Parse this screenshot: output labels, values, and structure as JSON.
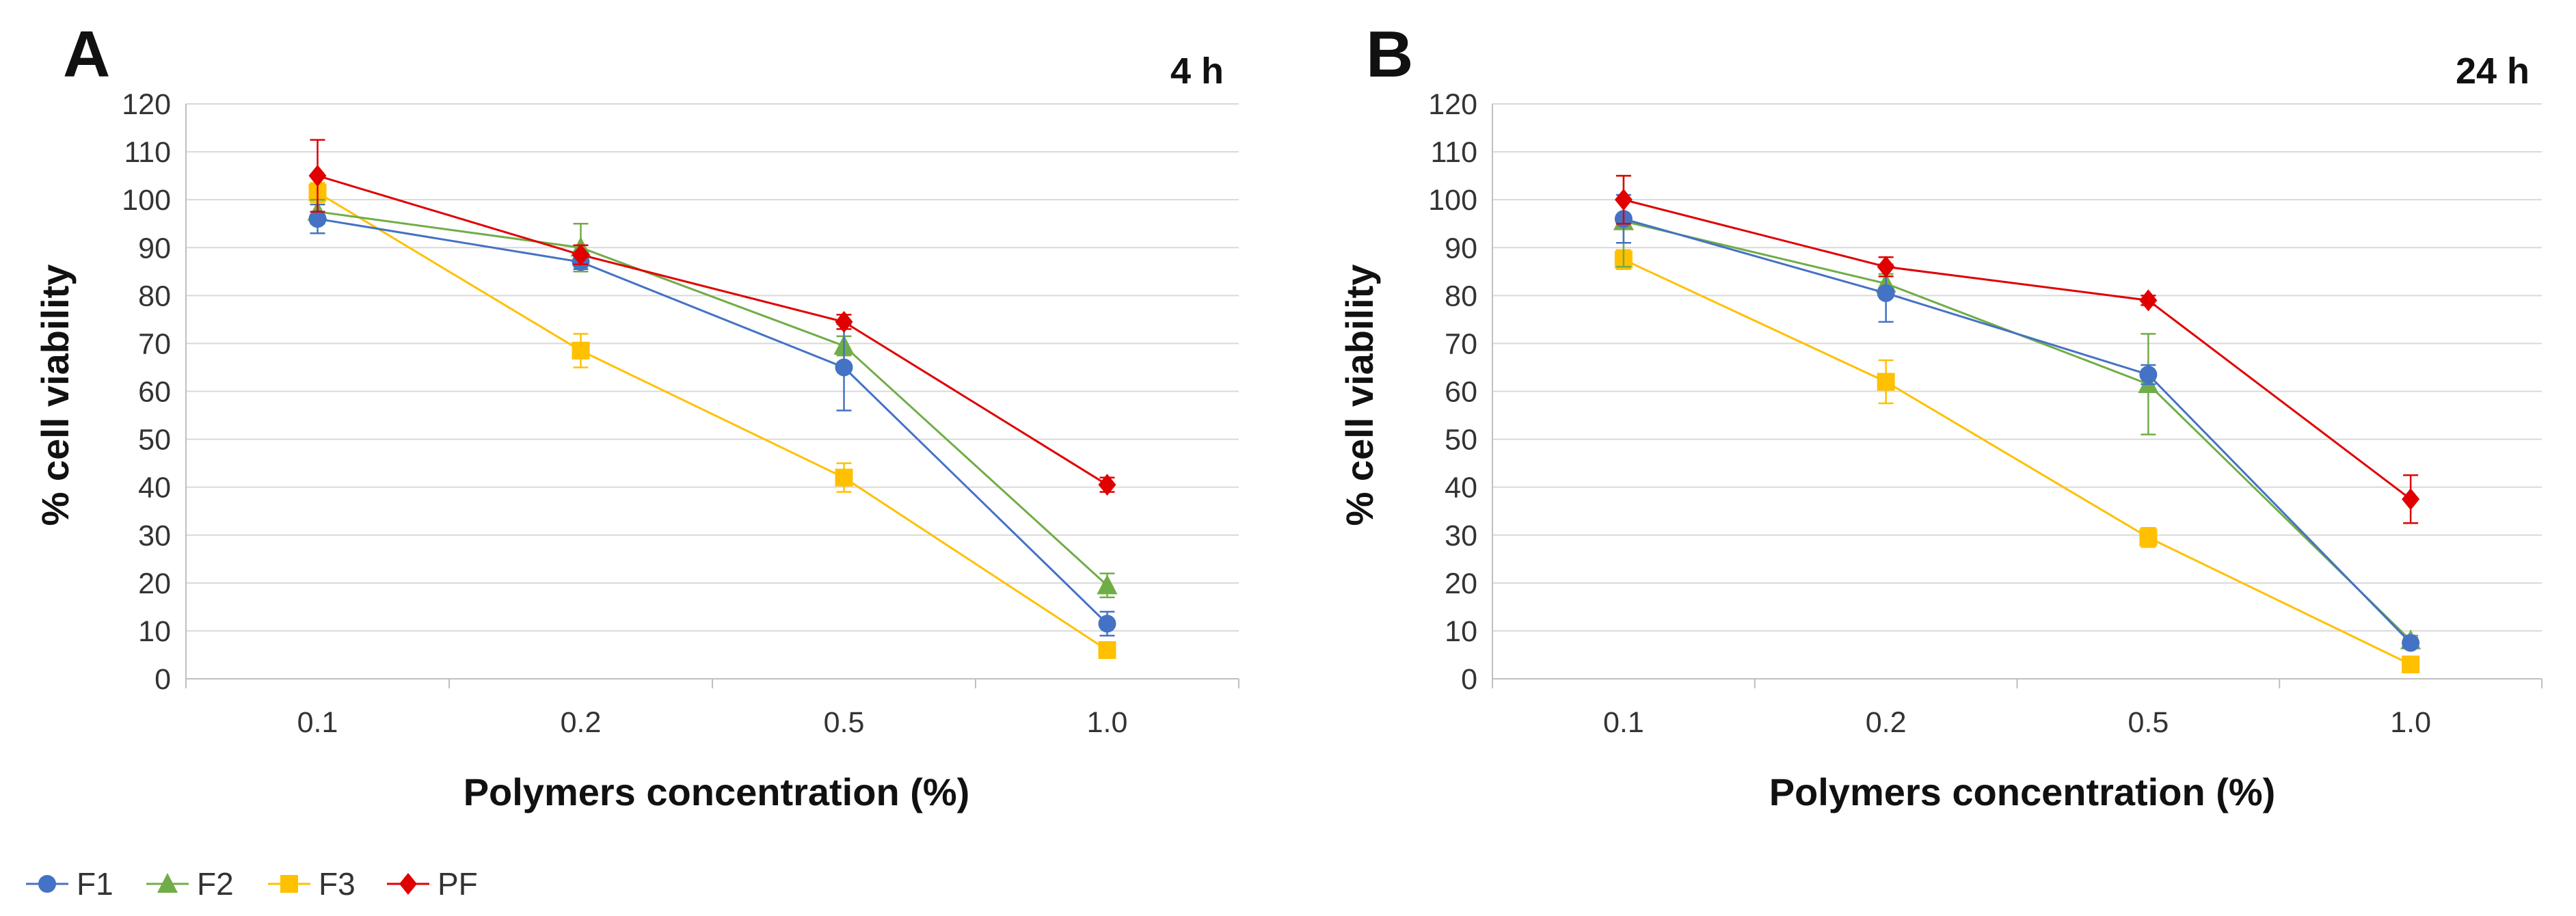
{
  "figure": {
    "legend": [
      {
        "name": "F1",
        "color": "#4472C4",
        "marker": "circle"
      },
      {
        "name": "F2",
        "color": "#70AD47",
        "marker": "triangle"
      },
      {
        "name": "F3",
        "color": "#FFC000",
        "marker": "square"
      },
      {
        "name": "PF",
        "color": "#E00000",
        "marker": "diamond"
      }
    ],
    "legend_placement": "bottom-left"
  },
  "chart_data": [
    {
      "type": "line",
      "panel_label": "A",
      "time_label": "4 h",
      "xlabel": "Polymers concentration (%)",
      "ylabel": "% cell viability",
      "categories": [
        "0.1",
        "0.2",
        "0.5",
        "1.0"
      ],
      "ylim": [
        0,
        120
      ],
      "yticks": [
        0,
        10,
        20,
        30,
        40,
        50,
        60,
        70,
        80,
        90,
        100,
        110,
        120
      ],
      "grid": true,
      "series": [
        {
          "name": "F1",
          "values": [
            96,
            87,
            65,
            11.5
          ],
          "errors": [
            3,
            1.5,
            9,
            2.5
          ]
        },
        {
          "name": "F2",
          "values": [
            97.5,
            90,
            69.5,
            19.5
          ],
          "errors": [
            2.5,
            5,
            2,
            2.5
          ]
        },
        {
          "name": "F3",
          "values": [
            101.5,
            68.5,
            42,
            6
          ],
          "errors": [
            2,
            3.5,
            3,
            1
          ]
        },
        {
          "name": "PF",
          "values": [
            105,
            88.5,
            74.5,
            40.5
          ],
          "errors": [
            7.5,
            2,
            1.5,
            1.5
          ]
        }
      ]
    },
    {
      "type": "line",
      "panel_label": "B",
      "time_label": "24 h",
      "xlabel": "Polymers concentration (%)",
      "ylabel": "% cell viability",
      "categories": [
        "0.1",
        "0.2",
        "0.5",
        "1.0"
      ],
      "ylim": [
        0,
        120
      ],
      "yticks": [
        0,
        10,
        20,
        30,
        40,
        50,
        60,
        70,
        80,
        90,
        100,
        110,
        120
      ],
      "grid": true,
      "series": [
        {
          "name": "F1",
          "values": [
            96,
            80.5,
            63.5,
            7.5
          ],
          "errors": [
            5,
            6,
            2,
            1
          ]
        },
        {
          "name": "F2",
          "values": [
            95.5,
            82.5,
            61.5,
            8
          ],
          "errors": [
            9.5,
            2,
            10.5,
            1
          ]
        },
        {
          "name": "F3",
          "values": [
            87.5,
            62,
            29.5,
            3
          ],
          "errors": [
            2,
            4.5,
            2,
            0.5
          ]
        },
        {
          "name": "PF",
          "values": [
            100,
            86,
            79,
            37.5
          ],
          "errors": [
            5,
            2,
            1,
            5
          ]
        }
      ]
    }
  ]
}
